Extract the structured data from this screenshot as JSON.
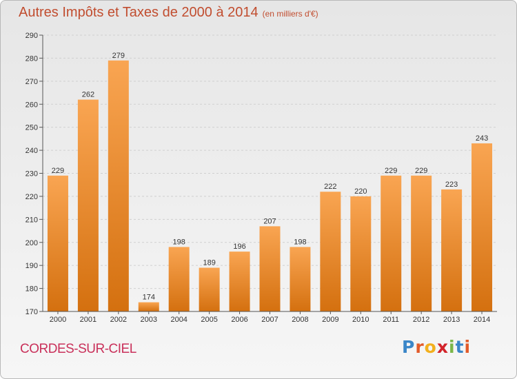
{
  "header": {
    "title": "Autres Impôts et Taxes de 2000 à 2014",
    "subtitle": "(en milliers d'€)"
  },
  "footer": {
    "commune": "CORDES-SUR-CIEL",
    "logo": [
      {
        "text": "P",
        "color": "#3a86c8"
      },
      {
        "text": "r",
        "color": "#e25b2a"
      },
      {
        "text": "o",
        "color": "#f2b01e"
      },
      {
        "text": "x",
        "color": "#d2232a"
      },
      {
        "text": "i",
        "color": "#7ab648"
      },
      {
        "text": "t",
        "color": "#3a86c8"
      },
      {
        "text": "i",
        "color": "#e25b2a"
      }
    ]
  },
  "colors": {
    "bar_light": "#f9a552",
    "bar_dark": "#d4700f",
    "title": "#c14d2f",
    "commune": "#c9305a"
  },
  "chart_data": {
    "type": "bar",
    "categories": [
      "2000",
      "2001",
      "2002",
      "2003",
      "2004",
      "2005",
      "2006",
      "2007",
      "2008",
      "2009",
      "2010",
      "2011",
      "2012",
      "2013",
      "2014"
    ],
    "values": [
      229,
      262,
      279,
      174,
      198,
      189,
      196,
      207,
      198,
      222,
      220,
      229,
      229,
      223,
      243
    ],
    "ylim": [
      170,
      290
    ],
    "yticks": [
      170,
      180,
      190,
      200,
      210,
      220,
      230,
      240,
      250,
      260,
      270,
      280,
      290
    ],
    "grid": true
  }
}
